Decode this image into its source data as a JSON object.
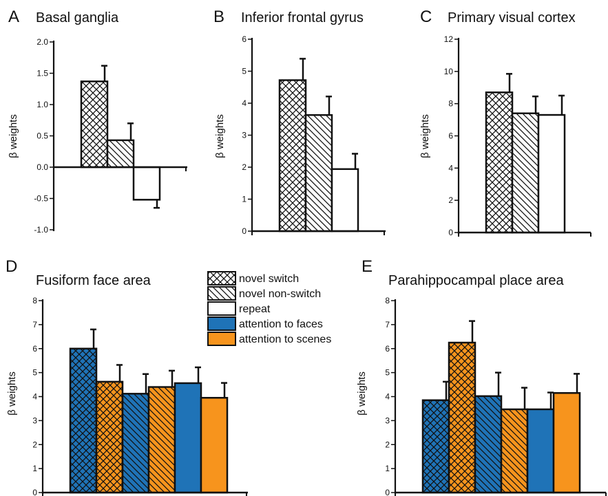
{
  "colors": {
    "blue": "#1f73b7",
    "orange": "#f7941d",
    "white": "#ffffff",
    "stroke": "#111111"
  },
  "legend": [
    {
      "label": "novel switch",
      "pattern": "cross",
      "fill": "white"
    },
    {
      "label": "novel non-switch",
      "pattern": "diag",
      "fill": "white"
    },
    {
      "label": "repeat",
      "pattern": "none",
      "fill": "white"
    },
    {
      "label": "attention to faces",
      "pattern": "none",
      "fill": "blue"
    },
    {
      "label": "attention to scenes",
      "pattern": "none",
      "fill": "orange"
    }
  ],
  "chart_data": [
    {
      "panel": "A",
      "type": "bar",
      "title": "Basal ganglia",
      "ylabel": "β weights",
      "ylim": [
        -1.0,
        2.0
      ],
      "yticks": [
        "-1.0",
        "-0.5",
        "0.0",
        "0.5",
        "1.0",
        "1.5",
        "2.0"
      ],
      "bars": [
        {
          "condition": "novel switch",
          "value": 1.37,
          "error": 0.25
        },
        {
          "condition": "novel non-switch",
          "value": 0.43,
          "error": 0.27
        },
        {
          "condition": "repeat",
          "value": -0.52,
          "error": 0.13
        }
      ]
    },
    {
      "panel": "B",
      "type": "bar",
      "title": "Inferior frontal gyrus",
      "ylabel": "β weights",
      "ylim": [
        0,
        6
      ],
      "yticks": [
        "0",
        "1",
        "2",
        "3",
        "4",
        "5",
        "6"
      ],
      "bars": [
        {
          "condition": "novel switch",
          "value": 4.72,
          "error": 0.67
        },
        {
          "condition": "novel non-switch",
          "value": 3.63,
          "error": 0.58
        },
        {
          "condition": "repeat",
          "value": 1.94,
          "error": 0.48
        }
      ]
    },
    {
      "panel": "C",
      "type": "bar",
      "title": "Primary visual cortex",
      "ylabel": "β weights",
      "ylim": [
        0,
        12
      ],
      "yticks": [
        "0",
        "2",
        "4",
        "6",
        "8",
        "10",
        "12"
      ],
      "bars": [
        {
          "condition": "novel switch",
          "value": 8.7,
          "error": 1.15
        },
        {
          "condition": "novel non-switch",
          "value": 7.4,
          "error": 1.05
        },
        {
          "condition": "repeat",
          "value": 7.3,
          "error": 1.2
        }
      ]
    },
    {
      "panel": "D",
      "type": "bar",
      "title": "Fusiform face area",
      "ylabel": "β weights",
      "ylim": [
        0,
        8
      ],
      "yticks": [
        "0",
        "1",
        "2",
        "3",
        "4",
        "5",
        "6",
        "7",
        "8"
      ],
      "bars": [
        {
          "condition": "novel switch",
          "attention": "attention to faces",
          "value": 6.0,
          "error": 0.8
        },
        {
          "condition": "novel switch",
          "attention": "attention to scenes",
          "value": 4.62,
          "error": 0.7
        },
        {
          "condition": "novel non-switch",
          "attention": "attention to faces",
          "value": 4.12,
          "error": 0.82
        },
        {
          "condition": "novel non-switch",
          "attention": "attention to scenes",
          "value": 4.4,
          "error": 0.68
        },
        {
          "condition": "repeat",
          "attention": "attention to faces",
          "value": 4.56,
          "error": 0.66
        },
        {
          "condition": "repeat",
          "attention": "attention to scenes",
          "value": 3.95,
          "error": 0.62
        }
      ]
    },
    {
      "panel": "E",
      "type": "bar",
      "title": "Parahippocampal place area",
      "ylabel": "β weights",
      "ylim": [
        0,
        8
      ],
      "yticks": [
        "0",
        "1",
        "2",
        "3",
        "4",
        "5",
        "6",
        "7",
        "8"
      ],
      "bars": [
        {
          "condition": "novel switch",
          "attention": "attention to faces",
          "value": 3.85,
          "error": 0.77
        },
        {
          "condition": "novel switch",
          "attention": "attention to scenes",
          "value": 6.25,
          "error": 0.9
        },
        {
          "condition": "novel non-switch",
          "attention": "attention to faces",
          "value": 4.02,
          "error": 0.98
        },
        {
          "condition": "novel non-switch",
          "attention": "attention to scenes",
          "value": 3.47,
          "error": 0.9
        },
        {
          "condition": "repeat",
          "attention": "attention to faces",
          "value": 3.47,
          "error": 0.7
        },
        {
          "condition": "repeat",
          "attention": "attention to scenes",
          "value": 4.15,
          "error": 0.8
        }
      ]
    }
  ]
}
